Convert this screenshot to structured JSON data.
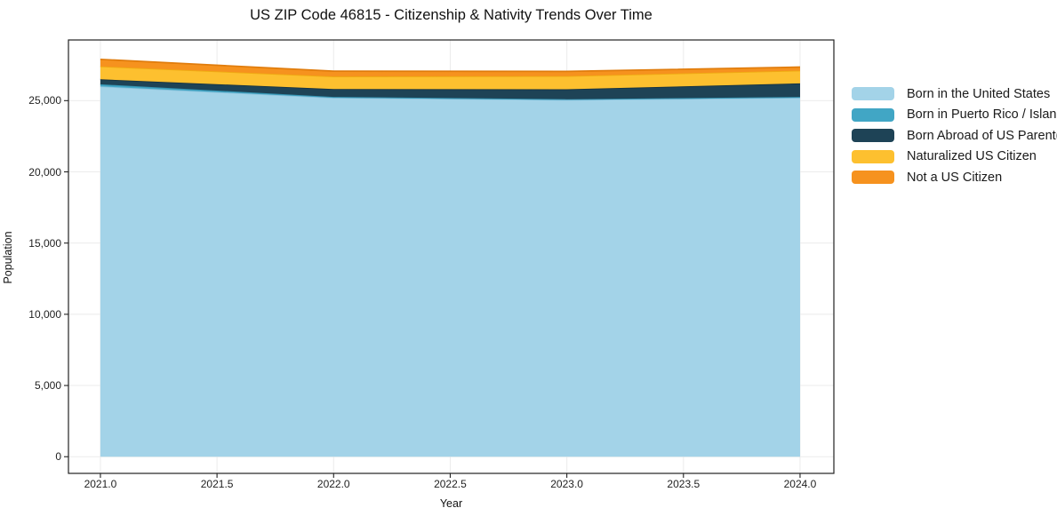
{
  "figure": {
    "title": "US ZIP Code 46815 - Citizenship & Nativity Trends Over Time",
    "xlabel": "Year",
    "ylabel": "Population"
  },
  "chart_data": {
    "type": "area",
    "stacked": true,
    "title": "US ZIP Code 46815 - Citizenship & Nativity Trends Over Time",
    "xlabel": "Year",
    "ylabel": "Population",
    "grid": true,
    "legend_position": "right-outside",
    "x": [
      2021,
      2022,
      2023,
      2024
    ],
    "series": [
      {
        "name": "Born in the United States",
        "color": "#a3d3e8",
        "line": "#8ac2dc",
        "values": [
          26000,
          25200,
          25050,
          25200
        ]
      },
      {
        "name": "Born in Puerto Rico / Islands",
        "color": "#41a6c5",
        "line": "#3492b0",
        "values": [
          150,
          60,
          50,
          60
        ]
      },
      {
        "name": "Born Abroad of US Parent(s)",
        "color": "#1e4356",
        "line": "#163240",
        "values": [
          350,
          560,
          700,
          950
        ]
      },
      {
        "name": "Naturalized US Citizen",
        "color": "#fdc02f",
        "line": "#efab12",
        "values": [
          900,
          875,
          925,
          900
        ]
      },
      {
        "name": "Not a US Citizen",
        "color": "#f6921e",
        "line": "#e07c0c",
        "values": [
          500,
          375,
          330,
          250
        ]
      }
    ],
    "totals": [
      27900,
      27070,
      27055,
      27360
    ],
    "xlim": [
      2020.863,
      2024.145
    ],
    "ylim": [
      -1170,
      29260
    ],
    "xticks": [
      {
        "value": 2021.0,
        "label": "2021.0"
      },
      {
        "value": 2021.5,
        "label": "2021.5"
      },
      {
        "value": 2022.0,
        "label": "2022.0"
      },
      {
        "value": 2022.5,
        "label": "2022.5"
      },
      {
        "value": 2023.0,
        "label": "2023.0"
      },
      {
        "value": 2023.5,
        "label": "2023.5"
      },
      {
        "value": 2024.0,
        "label": "2024.0"
      }
    ],
    "yticks": [
      {
        "value": 0,
        "label": "0"
      },
      {
        "value": 5000,
        "label": "5,000"
      },
      {
        "value": 10000,
        "label": "10,000"
      },
      {
        "value": 15000,
        "label": "15,000"
      },
      {
        "value": 20000,
        "label": "20,000"
      },
      {
        "value": 25000,
        "label": "25,000"
      }
    ]
  },
  "colors": {
    "grid": "#ebebeb",
    "spine": "#222222",
    "background": "#ffffff",
    "text": "#1a1a1a"
  }
}
